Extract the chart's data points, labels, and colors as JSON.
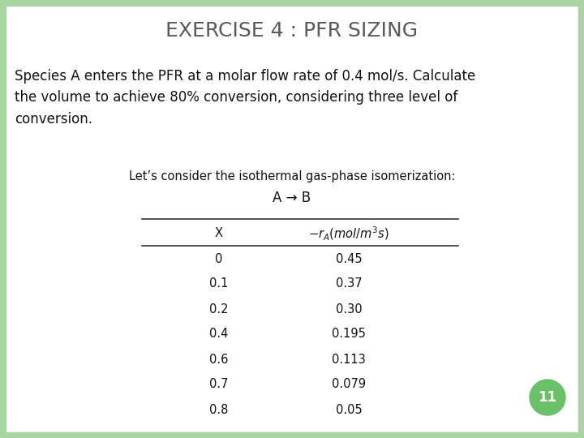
{
  "title": "EXERCISE 4 : PFR SIZING",
  "title_color": "#5a5a5a",
  "title_fontsize": 18,
  "body_text": "Species A enters the PFR at a molar flow rate of 0.4 mol/s. Calculate\nthe volume to achieve 80% conversion, considering three level of\nconversion.",
  "body_fontsize": 12,
  "subtitle": "Let’s consider the isothermal gas-phase isomerization:",
  "subtitle_fontsize": 10.5,
  "reaction": "A → B",
  "reaction_fontsize": 12,
  "col_header1": "X",
  "col_header2": "-r_A(mol/m^3s)",
  "table_data": [
    [
      "0",
      "0.45"
    ],
    [
      "0.1",
      "0.37"
    ],
    [
      "0.2",
      "0.30"
    ],
    [
      "0.4",
      "0.195"
    ],
    [
      "0.6",
      "0.113"
    ],
    [
      "0.7",
      "0.079"
    ],
    [
      "0.8",
      "0.05"
    ]
  ],
  "header_fontsize": 10.5,
  "table_fontsize": 10.5,
  "page_number": "11",
  "page_num_bg": "#6abf69",
  "background_color": "#ffffff",
  "border_color": "#a8d5a2",
  "border_width": 7
}
